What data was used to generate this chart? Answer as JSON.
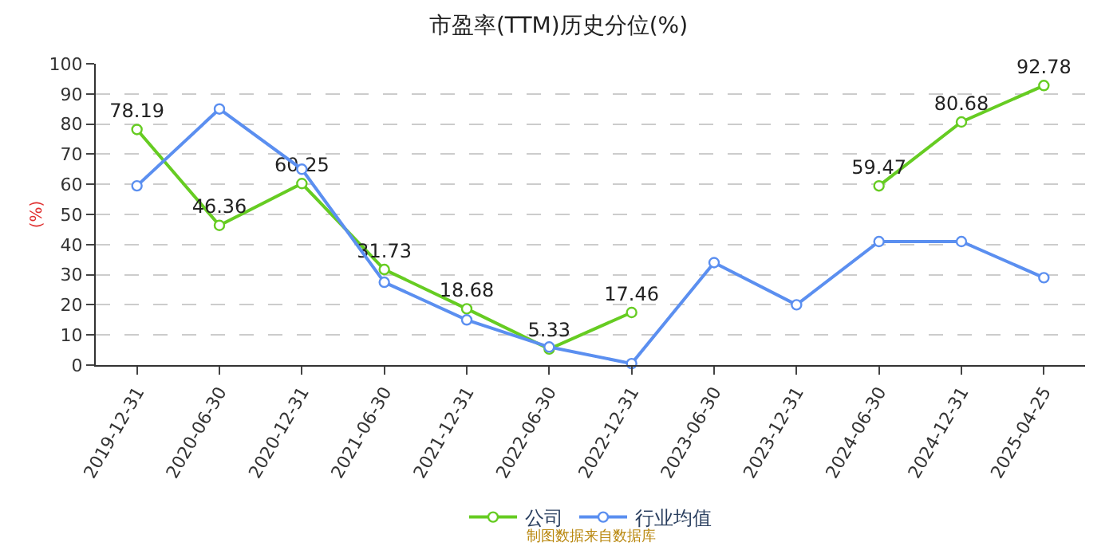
{
  "chart_data": {
    "type": "line",
    "title": "市盈率(TTM)历史分位(%)",
    "ylabel": "(%)",
    "categories": [
      "2019-12-31",
      "2020-06-30",
      "2020-12-31",
      "2021-06-30",
      "2021-12-31",
      "2022-06-30",
      "2022-12-31",
      "2023-06-30",
      "2023-12-31",
      "2024-06-30",
      "2024-12-31",
      "2025-04-25"
    ],
    "series": [
      {
        "name": "公司",
        "color": "#66cc22",
        "values": [
          78.19,
          46.36,
          60.25,
          31.73,
          18.68,
          5.33,
          17.46,
          null,
          null,
          59.47,
          80.68,
          92.78
        ],
        "value_labels": [
          "78.19",
          "46.36",
          "60.25",
          "31.73",
          "18.68",
          "5.33",
          "17.46",
          null,
          null,
          "59.47",
          "80.68",
          "92.78"
        ]
      },
      {
        "name": "行业均值",
        "color": "#5b8ff0",
        "values": [
          59.5,
          85,
          65,
          27.5,
          15,
          6,
          0.5,
          34,
          20,
          41,
          41,
          29
        ]
      }
    ],
    "ylim": [
      0,
      100
    ],
    "yticks": [
      0,
      10,
      20,
      30,
      40,
      50,
      60,
      70,
      80,
      90,
      100
    ],
    "grid": "y",
    "legend": "bottom",
    "marker": "circle",
    "line_style": "solid",
    "annotations": [
      "制图数据来自数据库"
    ]
  }
}
